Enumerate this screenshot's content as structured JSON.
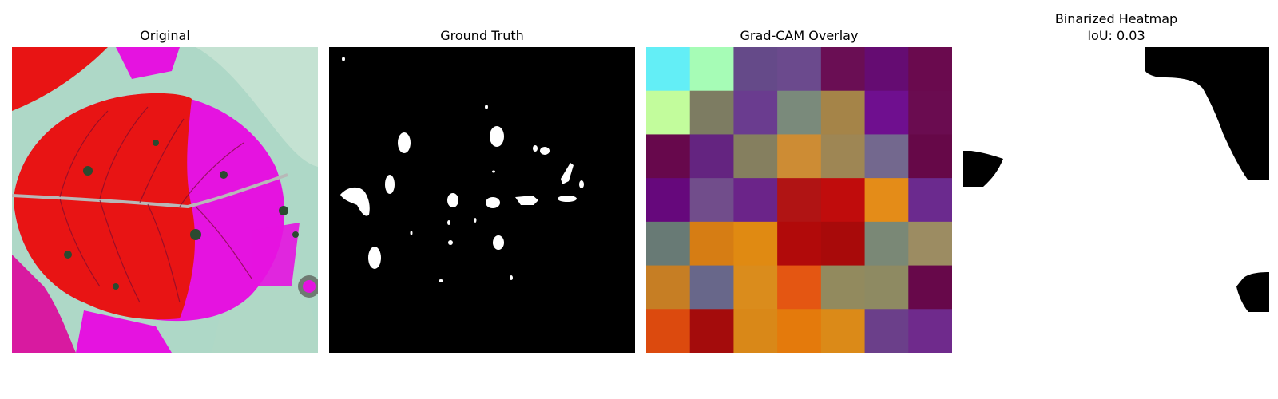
{
  "panels": {
    "original": {
      "title": "Original"
    },
    "ground_truth": {
      "title": "Ground Truth"
    },
    "gradcam": {
      "title": "Grad-CAM Overlay",
      "grid_colors": [
        [
          "#63eef6",
          "#a6fcb6",
          "#654a89",
          "#6b4a8d",
          "#6a0e54",
          "#650c72",
          "#6a0a4e"
        ],
        [
          "#c2fc9c",
          "#7d7c62",
          "#6a3c8f",
          "#7a8a7b",
          "#a58448",
          "#6f0f8f",
          "#6a0c50"
        ],
        [
          "#67084c",
          "#642480",
          "#857f5f",
          "#cd8c34",
          "#9e8654",
          "#73688e",
          "#660848"
        ],
        [
          "#66087c",
          "#714d8b",
          "#6b2489",
          "#b01414",
          "#c00c0c",
          "#e48c18",
          "#6b2a8e"
        ],
        [
          "#687a75",
          "#d67d14",
          "#e08a12",
          "#b10a0a",
          "#a80a0a",
          "#7a8876",
          "#9c8c62"
        ],
        [
          "#c67e24",
          "#68678a",
          "#da8c1c",
          "#e45612",
          "#928a5e",
          "#8e8a62",
          "#67084a"
        ],
        [
          "#dc4a0e",
          "#a40c0c",
          "#d98818",
          "#e47a0c",
          "#db8a18",
          "#6b3f8a",
          "#6f2a8c"
        ]
      ]
    },
    "binarized": {
      "title_line1": "Binarized Heatmap",
      "title_line2": "IoU: 0.03"
    }
  }
}
